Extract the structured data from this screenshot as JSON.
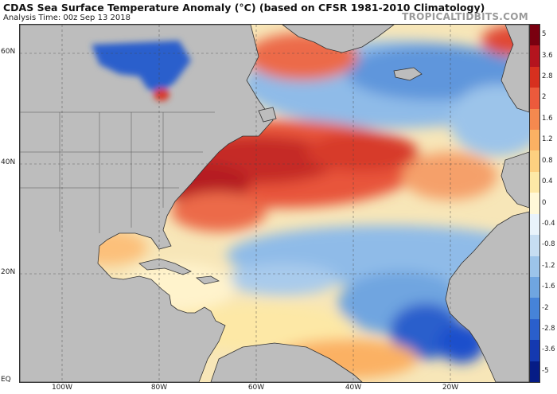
{
  "header": {
    "title": "CDAS Sea Surface Temperature Anomaly (°C) (based on CFSR 1981-2010 Climatology)",
    "subtitle": "Analysis Time: 00z Sep 13 2018",
    "brand": "TROPICALTIDBITS.COM"
  },
  "map": {
    "lat_labels": [
      "60N",
      "40N",
      "20N",
      "EQ"
    ],
    "lon_labels": [
      "100W",
      "80W",
      "60W",
      "40W",
      "20W"
    ],
    "colors": {
      "land": "#bdbdbd",
      "ocean_neutral": "#f4e9c8",
      "warm": "#e8543a",
      "warm_strong": "#b51f24",
      "cool": "#7fb0e6",
      "cool_strong": "#1e4fcc"
    }
  },
  "colorbar": {
    "labels": [
      "5",
      "3.6",
      "2.8",
      "2",
      "1.6",
      "1.2",
      "0.8",
      "0.4",
      "0",
      "-0.4",
      "-0.8",
      "-1.2",
      "-1.6",
      "-2",
      "-2.8",
      "-3.6",
      "-5"
    ],
    "colors": [
      "#7a0010",
      "#b4141e",
      "#d7301f",
      "#ec5a3c",
      "#f5894f",
      "#fbb163",
      "#fdd080",
      "#fde8a6",
      "#fff8d8",
      "#e9f3fb",
      "#c6ddf2",
      "#9cc4ea",
      "#6fa5e0",
      "#4683d8",
      "#2a5fcc",
      "#1439b0",
      "#061c86"
    ]
  }
}
